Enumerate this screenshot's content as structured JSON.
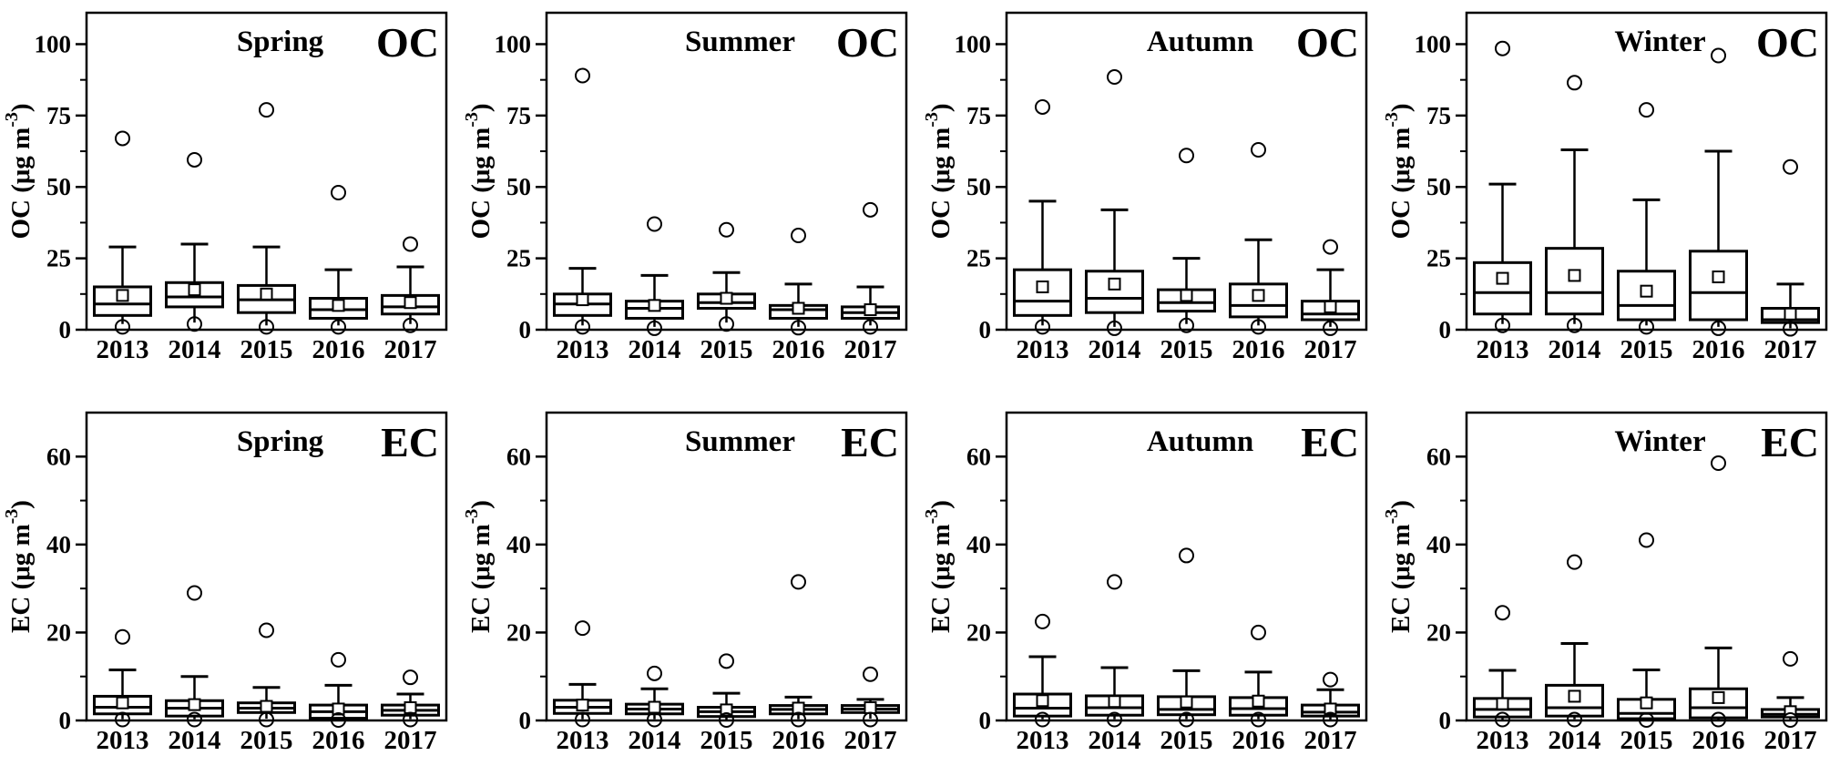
{
  "figure": {
    "background": "#ffffff",
    "ink": "#000000",
    "description": "Seasonal box plots of OC and EC concentrations for years 2013-2017"
  },
  "chart_data": {
    "type": "boxplot",
    "grid": false,
    "legend": "none",
    "categories": [
      "2013",
      "2014",
      "2015",
      "2016",
      "2017"
    ],
    "rows": [
      {
        "species": "OC",
        "axis_label": "OC (μg m⁻³)",
        "unit_prefix": "OC (μg m",
        "unit_sup": "-3",
        "unit_suffix": ")",
        "ylim": [
          0,
          111
        ],
        "yticks_major": [
          0,
          25,
          50,
          75,
          100
        ],
        "yticks_minor": [
          12.5,
          37.5,
          62.5,
          87.5
        ]
      },
      {
        "species": "EC",
        "axis_label": "EC (μg m⁻³)",
        "unit_prefix": "EC (μg m",
        "unit_sup": "-3",
        "unit_suffix": ")",
        "ylim": [
          0,
          70
        ],
        "yticks_major": [
          0,
          20,
          40,
          60
        ],
        "yticks_minor": [
          10,
          30,
          50
        ]
      }
    ],
    "panels": [
      {
        "season": "Spring",
        "species": "OC",
        "row": 0,
        "boxes": [
          {
            "year": "2013",
            "low": 2,
            "q1": 5,
            "median": 9,
            "q3": 15,
            "high": 29,
            "mean": 12,
            "outliers_high": [
              67
            ],
            "outlier_low": 1
          },
          {
            "year": "2014",
            "low": 2.5,
            "q1": 8,
            "median": 11.5,
            "q3": 16.5,
            "high": 30,
            "mean": 14,
            "outliers_high": [
              59.5
            ],
            "outlier_low": 2
          },
          {
            "year": "2015",
            "low": 1.5,
            "q1": 6,
            "median": 10.5,
            "q3": 15.5,
            "high": 29,
            "mean": 12.5,
            "outliers_high": [
              77
            ],
            "outlier_low": 1
          },
          {
            "year": "2016",
            "low": 1.5,
            "q1": 4,
            "median": 7,
            "q3": 11,
            "high": 21,
            "mean": 8.5,
            "outliers_high": [
              48
            ],
            "outlier_low": 1
          },
          {
            "year": "2017",
            "low": 2,
            "q1": 5.5,
            "median": 8,
            "q3": 12,
            "high": 22,
            "mean": 9.5,
            "outliers_high": [
              30
            ],
            "outlier_low": 1.5
          }
        ]
      },
      {
        "season": "Summer",
        "species": "OC",
        "row": 0,
        "boxes": [
          {
            "year": "2013",
            "low": 1.5,
            "q1": 5,
            "median": 9,
            "q3": 12.5,
            "high": 21.5,
            "mean": 10.5,
            "outliers_high": [
              89
            ],
            "outlier_low": 1
          },
          {
            "year": "2014",
            "low": 1,
            "q1": 4,
            "median": 7.5,
            "q3": 10,
            "high": 19,
            "mean": 8.5,
            "outliers_high": [
              37
            ],
            "outlier_low": 0.5
          },
          {
            "year": "2015",
            "low": 2.5,
            "q1": 7.5,
            "median": 9.5,
            "q3": 12.5,
            "high": 20,
            "mean": 11,
            "outliers_high": [
              35
            ],
            "outlier_low": 2
          },
          {
            "year": "2016",
            "low": 1,
            "q1": 4,
            "median": 7,
            "q3": 8.5,
            "high": 16,
            "mean": 7.5,
            "outliers_high": [
              33
            ],
            "outlier_low": 0.7
          },
          {
            "year": "2017",
            "low": 1.5,
            "q1": 4,
            "median": 6,
            "q3": 8,
            "high": 15,
            "mean": 7,
            "outliers_high": [
              42
            ],
            "outlier_low": 1
          }
        ]
      },
      {
        "season": "Autumn",
        "species": "OC",
        "row": 0,
        "boxes": [
          {
            "year": "2013",
            "low": 1.5,
            "q1": 5,
            "median": 10,
            "q3": 21,
            "high": 45,
            "mean": 15,
            "outliers_high": [
              78
            ],
            "outlier_low": 1
          },
          {
            "year": "2014",
            "low": 1,
            "q1": 6,
            "median": 11,
            "q3": 20.5,
            "high": 42,
            "mean": 16,
            "outliers_high": [
              88.5
            ],
            "outlier_low": 0.5
          },
          {
            "year": "2015",
            "low": 2,
            "q1": 6.5,
            "median": 9.5,
            "q3": 14,
            "high": 25,
            "mean": 12,
            "outliers_high": [
              61
            ],
            "outlier_low": 1.5
          },
          {
            "year": "2016",
            "low": 1.5,
            "q1": 4.5,
            "median": 8.5,
            "q3": 16,
            "high": 31.5,
            "mean": 12,
            "outliers_high": [
              63
            ],
            "outlier_low": 1
          },
          {
            "year": "2017",
            "low": 1,
            "q1": 3.5,
            "median": 5.5,
            "q3": 10,
            "high": 21,
            "mean": 8,
            "outliers_high": [
              29
            ],
            "outlier_low": 0.5
          }
        ]
      },
      {
        "season": "Winter",
        "species": "OC",
        "row": 0,
        "boxes": [
          {
            "year": "2013",
            "low": 2,
            "q1": 5.5,
            "median": 13,
            "q3": 23.5,
            "high": 51,
            "mean": 18,
            "outliers_high": [
              98.5
            ],
            "outlier_low": 1.5
          },
          {
            "year": "2014",
            "low": 2,
            "q1": 5.5,
            "median": 13,
            "q3": 28.5,
            "high": 63,
            "mean": 19,
            "outliers_high": [
              86.5
            ],
            "outlier_low": 1.5
          },
          {
            "year": "2015",
            "low": 1.5,
            "q1": 3.5,
            "median": 8.5,
            "q3": 20.5,
            "high": 45.5,
            "mean": 13.5,
            "outliers_high": [
              77
            ],
            "outlier_low": 1
          },
          {
            "year": "2016",
            "low": 1,
            "q1": 3.5,
            "median": 13,
            "q3": 27.5,
            "high": 62.5,
            "mean": 18.5,
            "outliers_high": [
              96
            ],
            "outlier_low": 0.5
          },
          {
            "year": "2017",
            "low": 0.5,
            "q1": 2.5,
            "median": 3.5,
            "q3": 7.5,
            "high": 16,
            "mean": 5.5,
            "outliers_high": [
              57
            ],
            "outlier_low": 0.3
          }
        ]
      },
      {
        "season": "Spring",
        "species": "EC",
        "row": 1,
        "boxes": [
          {
            "year": "2013",
            "low": 0.3,
            "q1": 1.5,
            "median": 3,
            "q3": 5.5,
            "high": 11.5,
            "mean": 4,
            "outliers_high": [
              19
            ],
            "outlier_low": 0.2
          },
          {
            "year": "2014",
            "low": 0.3,
            "q1": 1,
            "median": 2.8,
            "q3": 4.5,
            "high": 10,
            "mean": 3.6,
            "outliers_high": [
              29
            ],
            "outlier_low": 0.2
          },
          {
            "year": "2015",
            "low": 0.4,
            "q1": 1.8,
            "median": 2.8,
            "q3": 4,
            "high": 7.5,
            "mean": 3.2,
            "outliers_high": [
              20.5
            ],
            "outlier_low": 0.2
          },
          {
            "year": "2016",
            "low": 0.2,
            "q1": 0.5,
            "median": 2,
            "q3": 3.5,
            "high": 8,
            "mean": 2.6,
            "outliers_high": [
              13.8
            ],
            "outlier_low": 0.1
          },
          {
            "year": "2017",
            "low": 0.3,
            "q1": 1.2,
            "median": 2.3,
            "q3": 3.5,
            "high": 6,
            "mean": 2.9,
            "outliers_high": [
              9.8
            ],
            "outlier_low": 0.2
          }
        ]
      },
      {
        "season": "Summer",
        "species": "EC",
        "row": 1,
        "boxes": [
          {
            "year": "2013",
            "low": 0.3,
            "q1": 1.6,
            "median": 3,
            "q3": 4.6,
            "high": 8.2,
            "mean": 3.5,
            "outliers_high": [
              21
            ],
            "outlier_low": 0.2
          },
          {
            "year": "2014",
            "low": 0.3,
            "q1": 1.5,
            "median": 2.6,
            "q3": 3.7,
            "high": 7.2,
            "mean": 3,
            "outliers_high": [
              10.7
            ],
            "outlier_low": 0.2
          },
          {
            "year": "2015",
            "low": 0.2,
            "q1": 0.9,
            "median": 2,
            "q3": 3,
            "high": 6.2,
            "mean": 2.4,
            "outliers_high": [
              13.5
            ],
            "outlier_low": 0.1
          },
          {
            "year": "2016",
            "low": 0.3,
            "q1": 1.5,
            "median": 2.5,
            "q3": 3.4,
            "high": 5.3,
            "mean": 2.8,
            "outliers_high": [
              31.5
            ],
            "outlier_low": 0.2
          },
          {
            "year": "2017",
            "low": 0.4,
            "q1": 1.8,
            "median": 2.6,
            "q3": 3.4,
            "high": 4.8,
            "mean": 2.9,
            "outliers_high": [
              10.5
            ],
            "outlier_low": 0.2
          }
        ]
      },
      {
        "season": "Autumn",
        "species": "EC",
        "row": 1,
        "boxes": [
          {
            "year": "2013",
            "low": 0.3,
            "q1": 1,
            "median": 2.8,
            "q3": 6,
            "high": 14.5,
            "mean": 4.5,
            "outliers_high": [
              22.5
            ],
            "outlier_low": 0.2
          },
          {
            "year": "2014",
            "low": 0.3,
            "q1": 1.2,
            "median": 2.9,
            "q3": 5.6,
            "high": 12,
            "mean": 4.3,
            "outliers_high": [
              31.5
            ],
            "outlier_low": 0.2
          },
          {
            "year": "2015",
            "low": 0.3,
            "q1": 1.3,
            "median": 2.5,
            "q3": 5.4,
            "high": 11.3,
            "mean": 4.2,
            "outliers_high": [
              37.5
            ],
            "outlier_low": 0.2
          },
          {
            "year": "2016",
            "low": 0.3,
            "q1": 1.2,
            "median": 2.7,
            "q3": 5.2,
            "high": 11,
            "mean": 4.4,
            "outliers_high": [
              20
            ],
            "outlier_low": 0.2
          },
          {
            "year": "2017",
            "low": 0.2,
            "q1": 1,
            "median": 1.9,
            "q3": 3.5,
            "high": 7,
            "mean": 2.6,
            "outliers_high": [
              9.3
            ],
            "outlier_low": 0.2
          }
        ]
      },
      {
        "season": "Winter",
        "species": "EC",
        "row": 1,
        "boxes": [
          {
            "year": "2013",
            "low": 0.2,
            "q1": 0.8,
            "median": 2.5,
            "q3": 5,
            "high": 11.4,
            "mean": 3.8,
            "outliers_high": [
              24.5
            ],
            "outlier_low": 0.2
          },
          {
            "year": "2014",
            "low": 0.3,
            "q1": 1,
            "median": 2.9,
            "q3": 8,
            "high": 17.5,
            "mean": 5.5,
            "outliers_high": [
              36
            ],
            "outlier_low": 0.2
          },
          {
            "year": "2015",
            "low": 0.2,
            "q1": 0.4,
            "median": 1.6,
            "q3": 4.8,
            "high": 11.5,
            "mean": 4,
            "outliers_high": [
              41
            ],
            "outlier_low": 0.1
          },
          {
            "year": "2016",
            "low": 0.2,
            "q1": 0.6,
            "median": 2.9,
            "q3": 7.2,
            "high": 16.5,
            "mean": 5.2,
            "outliers_high": [
              58.5
            ],
            "outlier_low": 0.2
          },
          {
            "year": "2017",
            "low": 0.2,
            "q1": 0.8,
            "median": 1.4,
            "q3": 2.5,
            "high": 5.2,
            "mean": 2,
            "outliers_high": [
              14
            ],
            "outlier_low": 0.1
          }
        ]
      }
    ]
  }
}
